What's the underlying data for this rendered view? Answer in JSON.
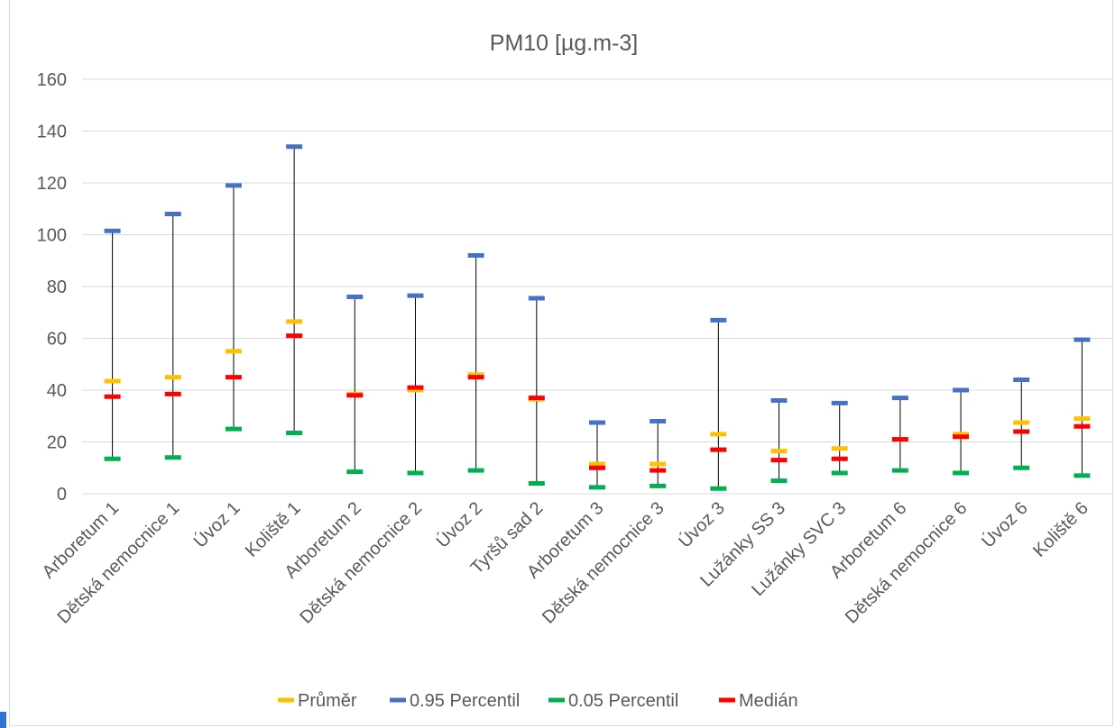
{
  "chart_data": {
    "type": "scatter",
    "title": "PM10 [µg.m-3]",
    "xlabel": "",
    "ylabel": "",
    "ylim": [
      0,
      160
    ],
    "yticks": [
      0,
      20,
      40,
      60,
      80,
      100,
      120,
      140,
      160
    ],
    "grid": true,
    "legend_position": "bottom",
    "categories": [
      "Arboretum 1",
      "Dětská nemocnice 1",
      "Úvoz 1",
      "Koliště 1",
      "Arboretum 2",
      "Dětská nemocnice 2",
      "Úvoz 2",
      "Tyršů sad 2",
      "Arboretum 3",
      "Dětská nemocnice 3",
      "Úvoz 3",
      "Lužánky SS 3",
      "Lužánky SVC 3",
      "Arboretum 6",
      "Dětská nemocnice 6",
      "Úvoz 6",
      "Koliště 6"
    ],
    "series": [
      {
        "name": "Průměr",
        "color": "#ffc000",
        "values": [
          43.5,
          45,
          55,
          66.5,
          38.5,
          40,
          46,
          36.5,
          11.5,
          11.5,
          23,
          16.5,
          17.5,
          21,
          23,
          27.5,
          29
        ]
      },
      {
        "name": "0.95 Percentil",
        "color": "#4472c4",
        "values": [
          101.5,
          108,
          119,
          134,
          76,
          76.5,
          92,
          75.5,
          27.5,
          28,
          67,
          36,
          35,
          37,
          40,
          44,
          59.5
        ]
      },
      {
        "name": "0.05 Percentil",
        "color": "#00b050",
        "values": [
          13.5,
          14,
          25,
          23.5,
          8.5,
          8,
          9,
          4,
          2.5,
          3,
          2,
          5,
          8,
          9,
          8,
          10,
          7
        ]
      },
      {
        "name": "Medián",
        "color": "#ff0000",
        "values": [
          37.5,
          38.5,
          45,
          61,
          38,
          41,
          45,
          37,
          10,
          9,
          17,
          13,
          13.5,
          21,
          22,
          24,
          26
        ]
      }
    ]
  }
}
